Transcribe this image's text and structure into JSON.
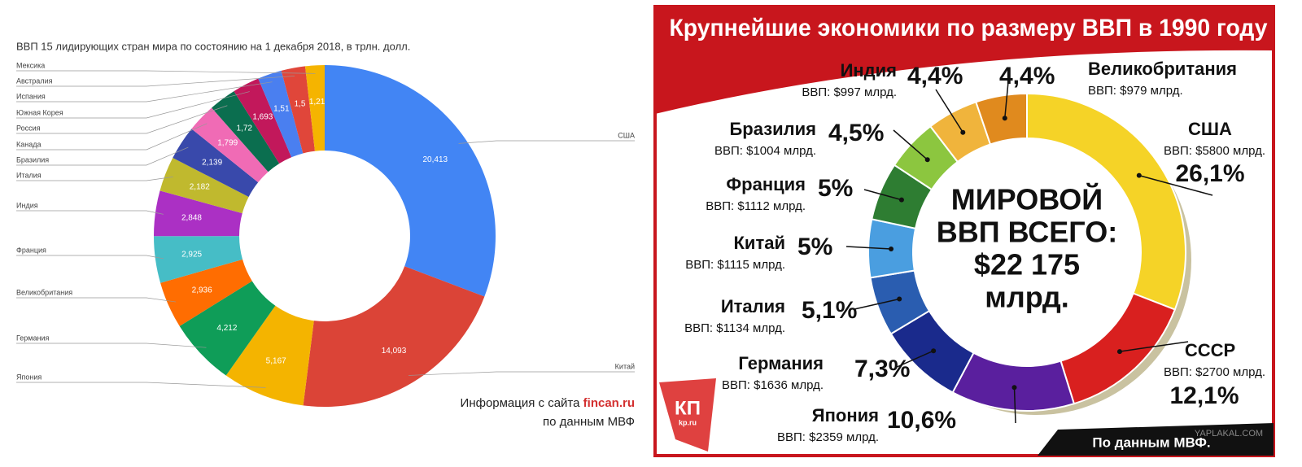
{
  "chart_data": [
    {
      "type": "donut",
      "title": "ВВП 15 лидирующих стран мира по состоянию на 1 декабря 2018, в трлн. долл.",
      "categories": [
        "США",
        "Китай",
        "Япония",
        "Германия",
        "Великобритания",
        "Франция",
        "Индия",
        "Италия",
        "Бразилия",
        "Канада",
        "Россия",
        "Южная Корея",
        "Испания",
        "Австралия",
        "Мексика"
      ],
      "values": [
        20.413,
        14.093,
        5.167,
        4.212,
        2.936,
        2.925,
        2.848,
        2.182,
        2.139,
        1.799,
        1.72,
        1.693,
        1.51,
        1.5,
        1.21
      ],
      "value_labels": [
        "20,413",
        "14,093",
        "5,167",
        "4,212",
        "2,936",
        "2,925",
        "2,848",
        "2,182",
        "2,139",
        "1,799",
        "1,72",
        "1,693",
        "1,51",
        "1,5",
        "1,21"
      ],
      "colors": [
        "#4285f4",
        "#db4437",
        "#f4b400",
        "#0f9d58",
        "#ff6d01",
        "#46bdc6",
        "#ab30c4",
        "#c0b92e",
        "#3949ab",
        "#f06bb5",
        "#0b6e4f",
        "#c2185b",
        "#4a7ff0",
        "#e0463a",
        "#f5b400"
      ],
      "annotation": "Информация с сайта",
      "source_site": "fincan.ru",
      "source": "по данным МВФ"
    },
    {
      "type": "donut",
      "title": "Крупнейшие экономики по размеру ВВП в 1990 году",
      "categories": [
        "США",
        "СССР",
        "Япония",
        "Германия",
        "Италия",
        "Китай",
        "Франция",
        "Бразилия",
        "Индия",
        "Великобритания"
      ],
      "values": [
        26.1,
        12.1,
        10.6,
        7.3,
        5.1,
        5,
        5,
        4.5,
        4.4,
        4.4
      ],
      "value_labels": [
        "26,1%",
        "12,1%",
        "10,6%",
        "7,3%",
        "5,1%",
        "5%",
        "5%",
        "4,5%",
        "4,4%",
        "4,4%"
      ],
      "gdp_labels": [
        "ВВП: $5800 млрд.",
        "ВВП: $2700 млрд.",
        "ВВП: $2359 млрд.",
        "ВВП: $1636 млрд.",
        "ВВП: $1134 млрд.",
        "ВВП: $1115 млрд.",
        "ВВП: $1112 млрд.",
        "ВВП: $1004 млрд.",
        "ВВП: $997 млрд.",
        "ВВП: $979 млрд."
      ],
      "colors": [
        "#f5d327",
        "#d9201f",
        "#5a1f9e",
        "#1a2a8c",
        "#2a5db0",
        "#4a9ee0",
        "#2e7d32",
        "#8cc63f",
        "#f0b43c",
        "#e08a1e"
      ],
      "center_text": [
        "МИРОВОЙ",
        "ВВП ВСЕГО:",
        "$22 175",
        "млрд."
      ],
      "source": "По данным МВФ.",
      "logo": "КП",
      "logo_sub": "kp.ru",
      "watermark": "YAPLAKAL.COM"
    }
  ]
}
